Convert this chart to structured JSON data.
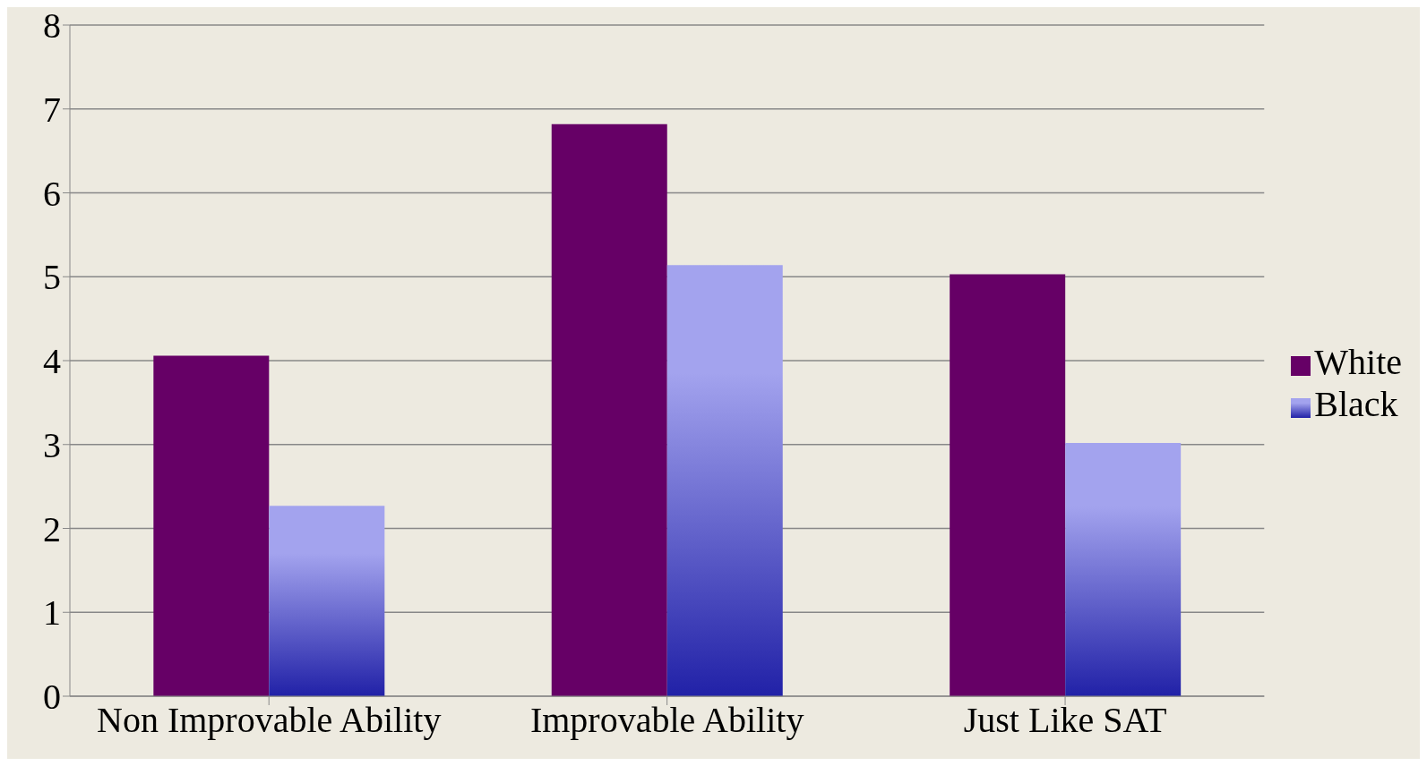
{
  "chart_data": {
    "type": "bar",
    "categories": [
      "Non Improvable Ability",
      "Improvable Ability",
      "Just Like SAT"
    ],
    "series": [
      {
        "name": "White",
        "color": "#660066",
        "values": [
          4.06,
          6.82,
          5.03
        ]
      },
      {
        "name": "Black",
        "color": "#a3a3ee",
        "values": [
          2.27,
          5.14,
          3.02
        ]
      }
    ],
    "ylim": [
      0,
      8
    ],
    "yticks": [
      0,
      1,
      2,
      3,
      4,
      5,
      6,
      7,
      8
    ],
    "grid": "y",
    "legend": "right"
  }
}
